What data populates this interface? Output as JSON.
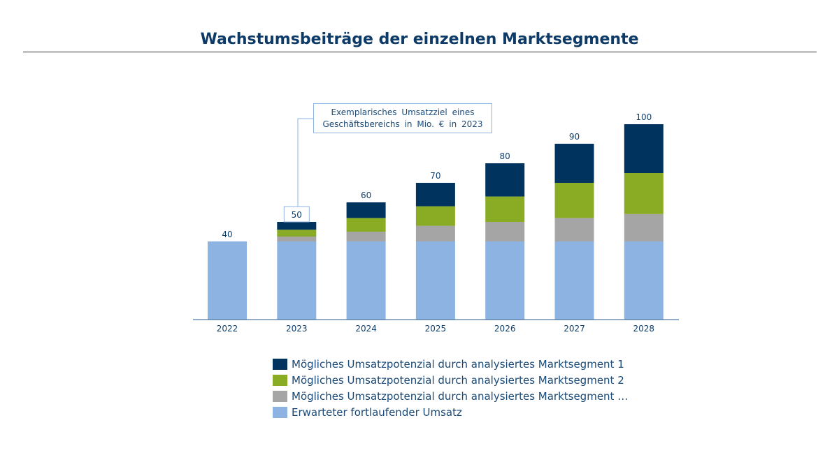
{
  "chart_data": {
    "type": "bar",
    "stacked": true,
    "title": "Wachstumsbeiträge der einzelnen Marktsegmente",
    "annotation": "Exemplarisches Umsatzziel eines Geschäftsbereichs in Mio. € in 2023",
    "categories": [
      "2022",
      "2023",
      "2024",
      "2025",
      "2026",
      "2027",
      "2028"
    ],
    "totals": [
      40,
      50,
      60,
      70,
      80,
      90,
      100
    ],
    "ylim": [
      0,
      100
    ],
    "legend_position": "bottom",
    "series": [
      {
        "name": "Erwarteter fortlaufender Umsatz",
        "color": "#8db3e2",
        "values": [
          40,
          40,
          40,
          40,
          40,
          40,
          40
        ]
      },
      {
        "name": "Mögliches Umsatzpotenzial durch analysiertes Marktsegment …",
        "color": "#a5a5a5",
        "values": [
          0,
          2.5,
          5,
          8,
          10,
          12,
          14
        ]
      },
      {
        "name": "Mögliches Umsatzpotenzial durch analysiertes Marktsegment 2",
        "color": "#8aab24",
        "values": [
          0,
          3.5,
          7,
          10,
          13,
          18,
          21
        ]
      },
      {
        "name": "Mögliches Umsatzpotenzial durch analysiertes Marktsegment 1",
        "color": "#00335e",
        "values": [
          0,
          4,
          8,
          12,
          17,
          20,
          25
        ]
      }
    ],
    "legend_order": [
      3,
      2,
      1,
      0
    ]
  }
}
